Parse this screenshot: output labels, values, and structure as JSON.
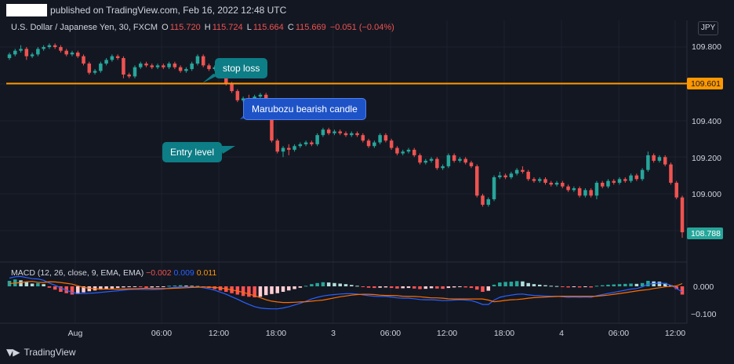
{
  "header": {
    "published_text": "published on TradingView.com, Feb 16, 2022 12:48 UTC"
  },
  "legend": {
    "symbol": "U.S. Dollar / Japanese Yen, 30, FXCM",
    "o_label": "O",
    "o_value": "115.720",
    "h_label": "H",
    "h_value": "115.724",
    "l_label": "L",
    "l_value": "115.664",
    "c_label": "C",
    "c_value": "115.669",
    "change": "−0.051 (−0.04%)",
    "currency": "JPY"
  },
  "macd_legend": {
    "name": "MACD (12, 26, close, 9, EMA, EMA)",
    "hist": "−0.002",
    "macd": "0.009",
    "signal": "0.011"
  },
  "price_axis": [
    "109.800",
    "109.400",
    "109.200",
    "109.000"
  ],
  "macd_axis": [
    "0.000",
    "−0.100"
  ],
  "time_axis": [
    "Aug",
    "06:00",
    "12:00",
    "18:00",
    "3",
    "06:00",
    "12:00",
    "18:00",
    "4",
    "06:00",
    "12:00"
  ],
  "price_tags": {
    "hline": "109.601",
    "last": "108.788"
  },
  "annotations": {
    "stop_loss": "stop loss",
    "marubozu": "Marubozu bearish candle",
    "entry": "Entry level"
  },
  "footer": {
    "brand": "TradingView"
  },
  "colors": {
    "up": "#26a69a",
    "down": "#ef5350",
    "hline": "#ff9800",
    "macd_line": "#2962ff",
    "signal_line": "#ff6d00",
    "background": "#131722"
  },
  "chart_data": {
    "type": "candlestick",
    "ylim": [
      108.74,
      109.92
    ],
    "hline": 109.601,
    "last_price": 108.788,
    "candles_ohlc": [
      [
        109.74,
        109.77,
        109.73,
        109.76
      ],
      [
        109.76,
        109.79,
        109.75,
        109.78
      ],
      [
        109.78,
        109.81,
        109.77,
        109.79
      ],
      [
        109.79,
        109.8,
        109.73,
        109.75
      ],
      [
        109.75,
        109.77,
        109.74,
        109.76
      ],
      [
        109.76,
        109.8,
        109.75,
        109.79
      ],
      [
        109.79,
        109.81,
        109.78,
        109.8
      ],
      [
        109.8,
        109.82,
        109.79,
        109.81
      ],
      [
        109.81,
        109.82,
        109.79,
        109.8
      ],
      [
        109.8,
        109.81,
        109.77,
        109.78
      ],
      [
        109.78,
        109.79,
        109.75,
        109.76
      ],
      [
        109.76,
        109.78,
        109.75,
        109.77
      ],
      [
        109.77,
        109.78,
        109.74,
        109.75
      ],
      [
        109.75,
        109.76,
        109.7,
        109.71
      ],
      [
        109.71,
        109.72,
        109.65,
        109.66
      ],
      [
        109.66,
        109.68,
        109.65,
        109.67
      ],
      [
        109.67,
        109.72,
        109.66,
        109.71
      ],
      [
        109.71,
        109.74,
        109.7,
        109.73
      ],
      [
        109.73,
        109.76,
        109.72,
        109.75
      ],
      [
        109.75,
        109.76,
        109.73,
        109.74
      ],
      [
        109.74,
        109.75,
        109.63,
        109.65
      ],
      [
        109.65,
        109.66,
        109.63,
        109.64
      ],
      [
        109.64,
        109.7,
        109.63,
        109.69
      ],
      [
        109.69,
        109.72,
        109.68,
        109.71
      ],
      [
        109.71,
        109.72,
        109.69,
        109.7
      ],
      [
        109.7,
        109.71,
        109.68,
        109.69
      ],
      [
        109.69,
        109.71,
        109.68,
        109.7
      ],
      [
        109.7,
        109.71,
        109.68,
        109.69
      ],
      [
        109.69,
        109.72,
        109.68,
        109.71
      ],
      [
        109.71,
        109.72,
        109.68,
        109.69
      ],
      [
        109.69,
        109.7,
        109.66,
        109.67
      ],
      [
        109.67,
        109.69,
        109.66,
        109.68
      ],
      [
        109.68,
        109.72,
        109.67,
        109.71
      ],
      [
        109.71,
        109.76,
        109.7,
        109.75
      ],
      [
        109.75,
        109.76,
        109.69,
        109.7
      ],
      [
        109.7,
        109.71,
        109.67,
        109.68
      ],
      [
        109.68,
        109.7,
        109.67,
        109.69
      ],
      [
        109.69,
        109.7,
        109.66,
        109.67
      ],
      [
        109.67,
        109.68,
        109.59,
        109.6
      ],
      [
        109.6,
        109.61,
        109.55,
        109.56
      ],
      [
        109.56,
        109.57,
        109.5,
        109.51
      ],
      [
        109.51,
        109.53,
        109.5,
        109.52
      ],
      [
        109.52,
        109.54,
        109.5,
        109.51
      ],
      [
        109.51,
        109.54,
        109.5,
        109.53
      ],
      [
        109.53,
        109.55,
        109.52,
        109.54
      ],
      [
        109.54,
        109.55,
        109.47,
        109.48
      ],
      [
        109.48,
        109.49,
        109.28,
        109.29
      ],
      [
        109.29,
        109.3,
        109.22,
        109.23
      ],
      [
        109.23,
        109.26,
        109.2,
        109.25
      ],
      [
        109.25,
        109.27,
        109.21,
        109.24
      ],
      [
        109.24,
        109.27,
        109.23,
        109.26
      ],
      [
        109.26,
        109.28,
        109.25,
        109.27
      ],
      [
        109.27,
        109.29,
        109.26,
        109.28
      ],
      [
        109.28,
        109.29,
        109.26,
        109.27
      ],
      [
        109.27,
        109.33,
        109.26,
        109.32
      ],
      [
        109.32,
        109.36,
        109.31,
        109.35
      ],
      [
        109.35,
        109.36,
        109.32,
        109.33
      ],
      [
        109.33,
        109.35,
        109.32,
        109.34
      ],
      [
        109.34,
        109.35,
        109.32,
        109.33
      ],
      [
        109.33,
        109.34,
        109.31,
        109.32
      ],
      [
        109.32,
        109.34,
        109.31,
        109.33
      ],
      [
        109.33,
        109.34,
        109.31,
        109.32
      ],
      [
        109.32,
        109.33,
        109.28,
        109.29
      ],
      [
        109.29,
        109.3,
        109.25,
        109.26
      ],
      [
        109.26,
        109.29,
        109.25,
        109.28
      ],
      [
        109.28,
        109.33,
        109.27,
        109.32
      ],
      [
        109.32,
        109.33,
        109.28,
        109.29
      ],
      [
        109.29,
        109.3,
        109.24,
        109.25
      ],
      [
        109.25,
        109.26,
        109.21,
        109.22
      ],
      [
        109.22,
        109.24,
        109.21,
        109.23
      ],
      [
        109.23,
        109.25,
        109.22,
        109.24
      ],
      [
        109.24,
        109.25,
        109.2,
        109.21
      ],
      [
        109.21,
        109.22,
        109.16,
        109.17
      ],
      [
        109.17,
        109.19,
        109.16,
        109.18
      ],
      [
        109.18,
        109.2,
        109.17,
        109.19
      ],
      [
        109.19,
        109.2,
        109.13,
        109.14
      ],
      [
        109.14,
        109.16,
        109.13,
        109.15
      ],
      [
        109.15,
        109.22,
        109.14,
        109.21
      ],
      [
        109.21,
        109.22,
        109.17,
        109.18
      ],
      [
        109.18,
        109.2,
        109.17,
        109.19
      ],
      [
        109.19,
        109.2,
        109.16,
        109.17
      ],
      [
        109.17,
        109.18,
        109.14,
        109.15
      ],
      [
        109.15,
        109.16,
        108.98,
        108.99
      ],
      [
        108.99,
        109.0,
        108.93,
        108.94
      ],
      [
        108.94,
        108.98,
        108.93,
        108.97
      ],
      [
        108.97,
        109.1,
        108.96,
        109.09
      ],
      [
        109.09,
        109.12,
        109.08,
        109.1
      ],
      [
        109.1,
        109.11,
        109.08,
        109.09
      ],
      [
        109.09,
        109.12,
        109.08,
        109.11
      ],
      [
        109.11,
        109.14,
        109.1,
        109.13
      ],
      [
        109.13,
        109.15,
        109.11,
        109.12
      ],
      [
        109.12,
        109.13,
        109.07,
        109.08
      ],
      [
        109.08,
        109.09,
        109.06,
        109.07
      ],
      [
        109.07,
        109.09,
        109.06,
        109.08
      ],
      [
        109.08,
        109.09,
        109.05,
        109.06
      ],
      [
        109.06,
        109.07,
        109.04,
        109.05
      ],
      [
        109.05,
        109.07,
        109.04,
        109.06
      ],
      [
        109.06,
        109.07,
        109.03,
        109.04
      ],
      [
        109.04,
        109.05,
        109.01,
        109.02
      ],
      [
        109.02,
        109.04,
        109.01,
        109.03
      ],
      [
        109.03,
        109.04,
        108.98,
        108.99
      ],
      [
        108.99,
        109.03,
        108.98,
        109.02
      ],
      [
        109.02,
        109.03,
        108.98,
        108.99
      ],
      [
        108.99,
        109.07,
        108.97,
        109.06
      ],
      [
        109.06,
        109.07,
        109.03,
        109.04
      ],
      [
        109.04,
        109.08,
        109.03,
        109.07
      ],
      [
        109.07,
        109.08,
        109.05,
        109.06
      ],
      [
        109.06,
        109.09,
        109.05,
        109.08
      ],
      [
        109.08,
        109.09,
        109.06,
        109.07
      ],
      [
        109.07,
        109.11,
        109.06,
        109.1
      ],
      [
        109.1,
        109.11,
        109.07,
        109.08
      ],
      [
        109.08,
        109.14,
        109.07,
        109.13
      ],
      [
        109.13,
        109.23,
        109.12,
        109.21
      ],
      [
        109.21,
        109.22,
        109.17,
        109.18
      ],
      [
        109.18,
        109.21,
        109.17,
        109.2
      ],
      [
        109.2,
        109.21,
        109.15,
        109.16
      ],
      [
        109.16,
        109.17,
        109.05,
        109.06
      ],
      [
        109.06,
        109.07,
        108.97,
        108.98
      ],
      [
        108.98,
        108.99,
        108.76,
        108.79
      ]
    ],
    "macd_hist": [
      0.02,
      0.025,
      0.022,
      0.015,
      0.01,
      0.012,
      0.008,
      -0.005,
      -0.012,
      -0.02,
      -0.025,
      -0.03,
      -0.028,
      -0.022,
      -0.018,
      -0.015,
      -0.012,
      -0.01,
      -0.008,
      -0.006,
      -0.004,
      -0.003,
      -0.002,
      -0.003,
      -0.005,
      -0.004,
      -0.003,
      -0.002,
      0.002,
      0.003,
      0.004,
      0.003,
      0.002,
      0.001,
      -0.003,
      -0.006,
      -0.01,
      -0.015,
      -0.02,
      -0.025,
      -0.03,
      -0.035,
      -0.038,
      -0.04,
      -0.038,
      -0.032,
      -0.028,
      -0.025,
      -0.02,
      -0.015,
      -0.01,
      -0.005,
      0.002,
      0.008,
      0.012,
      0.015,
      0.014,
      0.012,
      0.01,
      0.008,
      0.005,
      0.002,
      -0.002,
      -0.005,
      -0.006,
      -0.005,
      -0.004,
      -0.006,
      -0.008,
      -0.007,
      -0.006,
      -0.008,
      -0.01,
      -0.009,
      -0.007,
      -0.008,
      -0.009,
      -0.006,
      -0.004,
      -0.003,
      -0.004,
      -0.006,
      -0.012,
      -0.02,
      -0.016,
      0.006,
      0.014,
      0.016,
      0.017,
      0.019,
      0.018,
      0.012,
      0.008,
      0.006,
      0.004,
      0.002,
      0.001,
      -0.002,
      -0.004,
      -0.003,
      -0.004,
      -0.003,
      -0.004,
      0.002,
      0.004,
      0.006,
      0.007,
      0.008,
      0.009,
      0.01,
      0.009,
      0.012,
      0.02,
      0.018,
      0.017,
      0.012,
      0.004,
      -0.01,
      -0.03
    ],
    "macd_line": [
      0.03,
      0.035,
      0.036,
      0.032,
      0.028,
      0.027,
      0.022,
      0.012,
      0.004,
      -0.006,
      -0.014,
      -0.022,
      -0.026,
      -0.026,
      -0.025,
      -0.024,
      -0.022,
      -0.02,
      -0.018,
      -0.016,
      -0.014,
      -0.012,
      -0.011,
      -0.011,
      -0.012,
      -0.012,
      -0.011,
      -0.01,
      -0.006,
      -0.004,
      -0.002,
      -0.002,
      -0.002,
      -0.002,
      -0.005,
      -0.009,
      -0.014,
      -0.021,
      -0.029,
      -0.038,
      -0.047,
      -0.057,
      -0.066,
      -0.074,
      -0.079,
      -0.081,
      -0.082,
      -0.082,
      -0.079,
      -0.074,
      -0.068,
      -0.062,
      -0.054,
      -0.046,
      -0.04,
      -0.035,
      -0.032,
      -0.03,
      -0.028,
      -0.027,
      -0.027,
      -0.028,
      -0.031,
      -0.034,
      -0.036,
      -0.037,
      -0.037,
      -0.039,
      -0.042,
      -0.043,
      -0.043,
      -0.045,
      -0.048,
      -0.049,
      -0.049,
      -0.05,
      -0.052,
      -0.051,
      -0.05,
      -0.049,
      -0.05,
      -0.052,
      -0.058,
      -0.066,
      -0.066,
      -0.05,
      -0.04,
      -0.035,
      -0.032,
      -0.029,
      -0.028,
      -0.031,
      -0.033,
      -0.034,
      -0.035,
      -0.036,
      -0.036,
      -0.038,
      -0.04,
      -0.039,
      -0.04,
      -0.039,
      -0.04,
      -0.034,
      -0.03,
      -0.026,
      -0.022,
      -0.018,
      -0.014,
      -0.01,
      -0.008,
      -0.002,
      0.008,
      0.01,
      0.012,
      0.01,
      0.004,
      -0.008,
      -0.02
    ],
    "signal_line": [
      0.01,
      0.012,
      0.014,
      0.017,
      0.018,
      0.015,
      0.014,
      0.017,
      0.016,
      0.014,
      0.011,
      0.008,
      0.002,
      -0.004,
      -0.007,
      -0.009,
      -0.01,
      -0.01,
      -0.01,
      -0.01,
      -0.01,
      -0.009,
      -0.009,
      -0.008,
      -0.007,
      -0.008,
      -0.008,
      -0.008,
      -0.008,
      -0.007,
      -0.006,
      -0.005,
      -0.004,
      -0.003,
      -0.002,
      -0.003,
      -0.004,
      -0.006,
      -0.009,
      -0.013,
      -0.017,
      -0.022,
      -0.028,
      -0.034,
      -0.041,
      -0.049,
      -0.054,
      -0.057,
      -0.059,
      -0.059,
      -0.058,
      -0.057,
      -0.056,
      -0.054,
      -0.052,
      -0.05,
      -0.046,
      -0.042,
      -0.038,
      -0.035,
      -0.032,
      -0.03,
      -0.029,
      -0.029,
      -0.03,
      -0.032,
      -0.033,
      -0.033,
      -0.034,
      -0.036,
      -0.037,
      -0.037,
      -0.038,
      -0.04,
      -0.042,
      -0.042,
      -0.043,
      -0.045,
      -0.046,
      -0.046,
      -0.046,
      -0.046,
      -0.046,
      -0.046,
      -0.05,
      -0.056,
      -0.054,
      -0.051,
      -0.049,
      -0.048,
      -0.046,
      -0.043,
      -0.041,
      -0.04,
      -0.039,
      -0.038,
      -0.037,
      -0.036,
      -0.036,
      -0.036,
      -0.036,
      -0.036,
      -0.036,
      -0.036,
      -0.034,
      -0.032,
      -0.029,
      -0.026,
      -0.023,
      -0.02,
      -0.017,
      -0.014,
      -0.012,
      -0.008,
      -0.005,
      -0.002,
      0,
      0.002,
      0.01
    ]
  }
}
